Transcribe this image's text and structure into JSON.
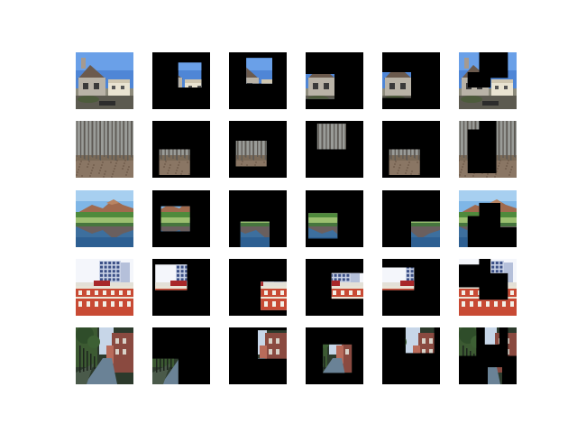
{
  "figure": {
    "background": "#ffffff",
    "mask_color": "#000000",
    "columns": [
      "original",
      "crop-1",
      "crop-2",
      "crop-3",
      "crop-4",
      "masked-composite"
    ],
    "rows": [
      {
        "scene": "house-with-blue-sky",
        "tiles": [
          {
            "kind": "original"
          },
          {
            "kind": "crop",
            "window": [
              0.45,
              0.18,
              0.85,
              0.62
            ]
          },
          {
            "kind": "crop",
            "window": [
              0.3,
              0.1,
              0.75,
              0.55
            ]
          },
          {
            "kind": "crop",
            "window": [
              0.0,
              0.38,
              0.5,
              0.82
            ]
          },
          {
            "kind": "crop",
            "window": [
              0.0,
              0.35,
              0.5,
              0.8
            ]
          },
          {
            "kind": "composite",
            "visible": [
              [
                0,
                0,
                0.35,
                0.35
              ],
              [
                0.85,
                0,
                1,
                0.6
              ],
              [
                0,
                0.62,
                1,
                1
              ],
              [
                0,
                0.3,
                0.15,
                1
              ],
              [
                0.55,
                0.45,
                1,
                1
              ]
            ]
          }
        ]
      },
      {
        "scene": "bare-forest",
        "tiles": [
          {
            "kind": "original"
          },
          {
            "kind": "crop",
            "window": [
              0.12,
              0.5,
              0.65,
              0.95
            ]
          },
          {
            "kind": "crop",
            "window": [
              0.12,
              0.35,
              0.65,
              0.8
            ]
          },
          {
            "kind": "crop",
            "window": [
              0.2,
              0.05,
              0.7,
              0.5
            ]
          },
          {
            "kind": "crop",
            "window": [
              0.12,
              0.5,
              0.65,
              0.95
            ]
          },
          {
            "kind": "composite",
            "visible": [
              [
                0,
                0,
                0.15,
                1
              ],
              [
                0.15,
                0,
                0.35,
                0.15
              ],
              [
                0.65,
                0,
                1,
                0.6
              ],
              [
                0.65,
                0.6,
                1,
                1
              ],
              [
                0,
                0.92,
                1,
                1
              ]
            ]
          }
        ]
      },
      {
        "scene": "mountain-lake",
        "tiles": [
          {
            "kind": "original"
          },
          {
            "kind": "crop",
            "window": [
              0.15,
              0.28,
              0.65,
              0.72
            ]
          },
          {
            "kind": "crop",
            "window": [
              0.2,
              0.55,
              0.7,
              1.0
            ]
          },
          {
            "kind": "crop",
            "window": [
              0.05,
              0.4,
              0.55,
              0.85
            ]
          },
          {
            "kind": "crop",
            "window": [
              0.5,
              0.55,
              1.0,
              1.0
            ]
          },
          {
            "kind": "composite",
            "visible": [
              [
                0,
                0,
                1,
                0.22
              ],
              [
                0,
                0.22,
                0.15,
                1
              ],
              [
                0.15,
                0.22,
                0.35,
                0.45
              ],
              [
                0.72,
                0.22,
                1,
                0.65
              ]
            ]
          }
        ]
      },
      {
        "scene": "brick-building-and-highrise",
        "tiles": [
          {
            "kind": "original"
          },
          {
            "kind": "crop",
            "window": [
              0.05,
              0.1,
              0.6,
              0.55
            ]
          },
          {
            "kind": "crop",
            "window": [
              0.55,
              0.4,
              1.0,
              0.9
            ]
          },
          {
            "kind": "crop",
            "window": [
              0.45,
              0.25,
              1.0,
              0.7
            ]
          },
          {
            "kind": "crop",
            "window": [
              0.0,
              0.15,
              0.55,
              0.55
            ]
          },
          {
            "kind": "composite",
            "visible": [
              [
                0,
                0,
                0.35,
                0.1
              ],
              [
                0.55,
                0,
                1,
                0.25
              ],
              [
                0,
                0.5,
                0.35,
                1
              ],
              [
                0.35,
                0.72,
                1,
                1
              ],
              [
                0.85,
                0.25,
                1,
                0.72
              ]
            ]
          }
        ]
      },
      {
        "scene": "tree-lined-street",
        "tiles": [
          {
            "kind": "original"
          },
          {
            "kind": "crop",
            "window": [
              0.0,
              0.55,
              0.45,
              1.0
            ]
          },
          {
            "kind": "crop",
            "window": [
              0.5,
              0.05,
              1.0,
              0.55
            ]
          },
          {
            "kind": "crop",
            "window": [
              0.3,
              0.3,
              0.8,
              0.8
            ]
          },
          {
            "kind": "crop",
            "window": [
              0.4,
              0.0,
              0.9,
              0.45
            ]
          },
          {
            "kind": "composite",
            "visible": [
              [
                0,
                0,
                0.3,
                0.5
              ],
              [
                0.45,
                0,
                0.7,
                0.3
              ],
              [
                0.85,
                0,
                1,
                0.5
              ],
              [
                0.5,
                0.7,
                0.75,
                1
              ]
            ]
          }
        ]
      }
    ]
  }
}
